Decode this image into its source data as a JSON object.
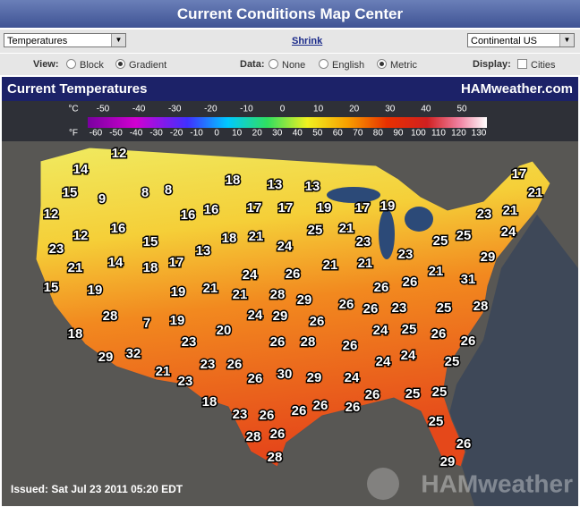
{
  "header": {
    "title": "Current Conditions Map Center"
  },
  "controls": {
    "layer_select": "Temperatures",
    "shrink_link": "Shrink",
    "region_select": "Continental US",
    "view_label": "View:",
    "view_options": [
      "Block",
      "Gradient"
    ],
    "view_selected": 1,
    "data_label": "Data:",
    "data_options": [
      "None",
      "English",
      "Metric"
    ],
    "data_selected": 2,
    "display_label": "Display:",
    "display_options": [
      "Cities"
    ]
  },
  "map": {
    "title": "Current Temperatures",
    "brand": "HAMweather.com",
    "legend": {
      "celsius_label": "°C",
      "celsius_ticks": [
        -50,
        -40,
        -30,
        -20,
        -10,
        0,
        10,
        20,
        30,
        40,
        50
      ],
      "fahrenheit_label": "°F",
      "fahrenheit_ticks": [
        -60,
        -50,
        -40,
        -30,
        -20,
        -10,
        0,
        10,
        20,
        30,
        40,
        50,
        60,
        70,
        80,
        90,
        100,
        110,
        120,
        130
      ]
    },
    "temperatures": [
      14,
      12,
      18,
      13,
      13,
      17,
      21,
      15,
      9,
      8,
      8,
      12,
      16,
      16,
      17,
      17,
      19,
      17,
      19,
      23,
      21,
      12,
      16,
      18,
      21,
      25,
      21,
      23,
      24,
      23,
      15,
      13,
      24,
      25,
      25,
      21,
      14,
      18,
      17,
      21,
      21,
      23,
      29,
      15,
      19,
      24,
      26,
      21,
      31,
      19,
      21,
      21,
      28,
      29,
      26,
      26,
      28,
      7,
      19,
      24,
      29,
      26,
      26,
      26,
      23,
      25,
      28,
      18,
      23,
      20,
      26,
      28,
      26,
      24,
      25,
      26,
      26,
      29,
      32,
      21,
      23,
      26,
      24,
      24,
      25,
      23,
      26,
      30,
      29,
      24,
      18,
      26,
      25,
      25,
      23,
      26,
      26,
      26,
      26,
      28,
      26,
      25,
      28,
      26,
      29
    ],
    "issued": "Issued: Sat Jul 23 2011 05:20 EDT",
    "watermark": "HAMweather"
  }
}
